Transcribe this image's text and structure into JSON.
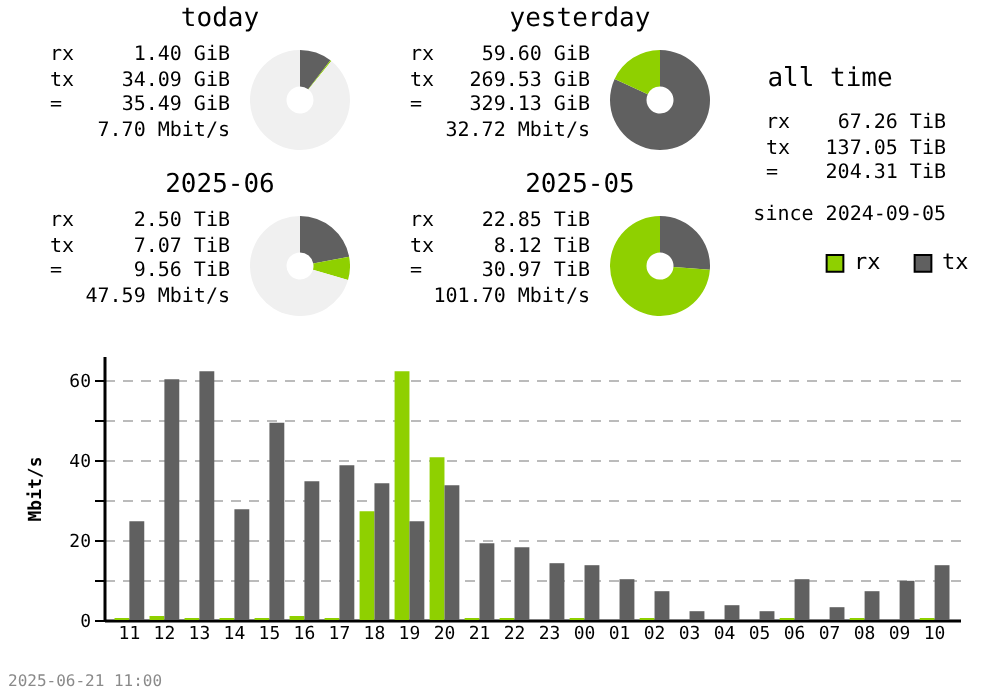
{
  "chart_data": [
    {
      "type": "donut",
      "title": "today",
      "annotations": [
        "rx 1.40 GiB",
        "tx 34.09 GiB",
        "= 35.49 GiB",
        "7.70 Mbit/s"
      ],
      "categories": [
        null,
        null,
        null
      ],
      "values": [
        10.4,
        0.4,
        89.2
      ],
      "colors": [
        "#606060",
        "#8fd000",
        "#f0f0f0"
      ]
    },
    {
      "type": "donut",
      "title": "yesterday",
      "annotations": [
        "rx 59.60 GiB",
        "tx 269.53 GiB",
        "= 329.13 GiB",
        "32.72 Mbit/s"
      ],
      "categories": [
        null,
        null
      ],
      "values": [
        81.9,
        18.1
      ],
      "colors": [
        "#606060",
        "#8fd000"
      ]
    },
    {
      "type": "other",
      "title": "all time",
      "annotations": [
        "rx 67.26 TiB",
        "tx 137.05 TiB",
        "= 204.31 TiB",
        "since 2024-09-05"
      ]
    },
    {
      "type": "donut",
      "title": "2025-06",
      "annotations": [
        "rx 2.50 TiB",
        "tx 7.07 TiB",
        "= 9.56 TiB",
        "47.59 Mbit/s"
      ],
      "categories": [
        null,
        null,
        null
      ],
      "values": [
        22,
        7.5,
        70.5
      ],
      "colors": [
        "#606060",
        "#8fd000",
        "#f0f0f0"
      ]
    },
    {
      "type": "donut",
      "title": "2025-05",
      "annotations": [
        "rx 22.85 TiB",
        "tx 8.12 TiB",
        "= 30.97 TiB",
        "101.70 Mbit/s"
      ],
      "categories": [
        null,
        null
      ],
      "values": [
        26.2,
        73.8
      ],
      "colors": [
        "#606060",
        "#8fd000"
      ]
    },
    {
      "type": "bar",
      "ylabel": "Mbit/s",
      "annotations": [
        "2025-06-21 11:00"
      ],
      "categories": [
        "11",
        "12",
        "13",
        "14",
        "15",
        "16",
        "17",
        "18",
        "19",
        "20",
        "21",
        "22",
        "23",
        "00",
        "01",
        "02",
        "03",
        "04",
        "05",
        "06",
        "07",
        "08",
        "09",
        "10"
      ],
      "series": [
        {
          "name": "rx",
          "color": "#8fd000",
          "values": [
            0.5,
            1,
            0.5,
            0.5,
            0.5,
            1,
            0.5,
            27.2,
            62.2,
            40.7,
            0.5,
            0.5,
            0,
            0.5,
            0,
            0.5,
            0,
            0,
            0,
            0.5,
            0,
            0.5,
            0,
            0.5
          ]
        },
        {
          "name": "tx",
          "color": "#606060",
          "values": [
            24.7,
            60.2,
            62.2,
            27.7,
            49.3,
            34.7,
            38.7,
            34.2,
            24.7,
            33.7,
            19.2,
            18.2,
            14.2,
            13.7,
            10.2,
            7.2,
            2.2,
            3.7,
            2.2,
            10.2,
            3.2,
            7.2,
            9.8,
            13.7
          ]
        }
      ],
      "ylim": [
        0,
        66
      ],
      "yticks": [
        0,
        {
          "value": 10,
          "label": null
        },
        20,
        {
          "value": 30,
          "label": null
        },
        40,
        {
          "value": 50,
          "label": null
        },
        60
      ],
      "grid": "y",
      "legend": "top right"
    }
  ]
}
